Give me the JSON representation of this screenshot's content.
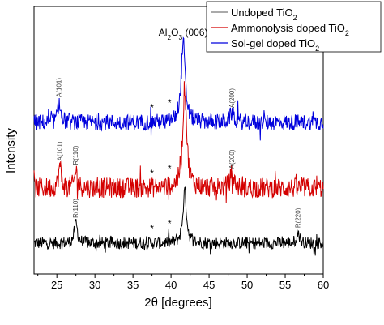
{
  "chart_data": {
    "type": "line",
    "xlabel": "2θ [degrees]",
    "ylabel": "Intensity",
    "xlim": [
      22,
      60
    ],
    "x_ticks": [
      25,
      30,
      35,
      40,
      45,
      50,
      55,
      60
    ],
    "y_ticks_shown": false,
    "grid": false,
    "legend_placement": "top-right",
    "main_annotation": {
      "text": "Al2O3 (006)",
      "x": 41.6
    },
    "series": [
      {
        "name": "Undoped TiO2",
        "color": "#000000",
        "offset": 0.0,
        "peaks": [
          {
            "x": 27.5,
            "height": 0.33,
            "width": 0.25
          },
          {
            "x": 41.8,
            "height": 0.85,
            "width": 0.28
          },
          {
            "x": 56.7,
            "height": 0.17,
            "width": 0.25
          }
        ],
        "stars": [
          37.5,
          39.8
        ],
        "annotations": [
          {
            "text": "R(110)",
            "x": 27.5
          },
          {
            "text": "R(220)",
            "x": 56.7
          }
        ]
      },
      {
        "name": "Ammonolysis doped TiO2",
        "color": "#d40000",
        "offset": 1.0,
        "peaks": [
          {
            "x": 25.4,
            "height": 0.22,
            "width": 0.2
          },
          {
            "x": 27.5,
            "height": 0.18,
            "width": 0.2
          },
          {
            "x": 41.8,
            "height": 1.0,
            "width": 0.3
          },
          {
            "x": 48.0,
            "height": 0.14,
            "width": 0.3
          }
        ],
        "stars": [
          37.5,
          39.8
        ],
        "annotations": [
          {
            "text": "A(101)",
            "x": 25.4
          },
          {
            "text": "R(110)",
            "x": 27.5
          },
          {
            "text": "A(200)",
            "x": 48.0
          }
        ]
      },
      {
        "name": "Sol-gel doped TiO2",
        "color": "#0000dd",
        "offset": 2.0,
        "peaks": [
          {
            "x": 25.3,
            "height": 0.25,
            "width": 0.2
          },
          {
            "x": 41.6,
            "height": 1.0,
            "width": 0.3
          },
          {
            "x": 48.0,
            "height": 0.12,
            "width": 0.3
          }
        ],
        "stars": [
          37.5,
          39.8
        ],
        "annotations": [
          {
            "text": "A(101)",
            "x": 25.3
          },
          {
            "text": "A(200)",
            "x": 48.0
          }
        ]
      }
    ],
    "legend": [
      {
        "label": "Undoped TiO2",
        "color": "#777777"
      },
      {
        "label": "Ammonolysis doped TiO2",
        "color": "#d40000"
      },
      {
        "label": "Sol-gel doped TiO2",
        "color": "#0000dd"
      }
    ]
  }
}
